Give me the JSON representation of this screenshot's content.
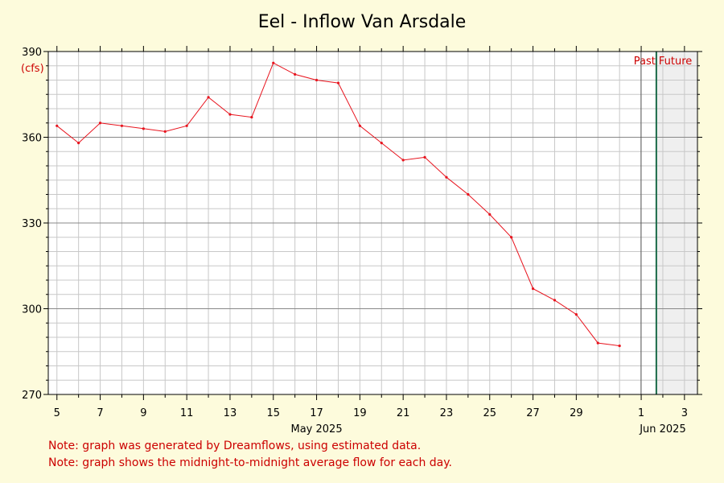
{
  "chart_data": {
    "type": "line",
    "title": "Eel - Inflow Van Arsdale",
    "ylabel": "(cfs)",
    "ylim": [
      270,
      390
    ],
    "yticks": [
      {
        "value": 390,
        "label": "390"
      },
      {
        "value": 360,
        "label": "360"
      },
      {
        "value": 330,
        "label": "330"
      },
      {
        "value": 300,
        "label": "300"
      },
      {
        "value": 270,
        "label": "270"
      }
    ],
    "xlim": [
      "2025-05-04.6",
      "2025-06-03.6"
    ],
    "xticks": [
      {
        "date": "2025-05-05",
        "label": "5"
      },
      {
        "date": "2025-05-07",
        "label": "7"
      },
      {
        "date": "2025-05-09",
        "label": "9"
      },
      {
        "date": "2025-05-11",
        "label": "11"
      },
      {
        "date": "2025-05-13",
        "label": "13"
      },
      {
        "date": "2025-05-15",
        "label": "15"
      },
      {
        "date": "2025-05-17",
        "label": "17"
      },
      {
        "date": "2025-05-19",
        "label": "19"
      },
      {
        "date": "2025-05-21",
        "label": "21"
      },
      {
        "date": "2025-05-23",
        "label": "23"
      },
      {
        "date": "2025-05-25",
        "label": "25"
      },
      {
        "date": "2025-05-27",
        "label": "27"
      },
      {
        "date": "2025-05-29",
        "label": "29"
      },
      {
        "date": "2025-06-01",
        "label": "1"
      },
      {
        "date": "2025-06-03",
        "label": "3"
      }
    ],
    "month_labels": [
      {
        "date": "2025-05-17",
        "label": "May 2025"
      },
      {
        "date": "2025-06-02",
        "label": "Jun 2025"
      }
    ],
    "series": [
      {
        "color": "#e8141e",
        "x": [
          "2025-05-05",
          "2025-05-06",
          "2025-05-07",
          "2025-05-08",
          "2025-05-09",
          "2025-05-10",
          "2025-05-11",
          "2025-05-12",
          "2025-05-13",
          "2025-05-14",
          "2025-05-15",
          "2025-05-16",
          "2025-05-17",
          "2025-05-18",
          "2025-05-19",
          "2025-05-20",
          "2025-05-21",
          "2025-05-22",
          "2025-05-23",
          "2025-05-24",
          "2025-05-25",
          "2025-05-26",
          "2025-05-27",
          "2025-05-28",
          "2025-05-29",
          "2025-05-30",
          "2025-05-31"
        ],
        "y": [
          364,
          358,
          365,
          364,
          363,
          362,
          364,
          374,
          368,
          367,
          386,
          382,
          380,
          379,
          364,
          358,
          352,
          353,
          346,
          340,
          333,
          325,
          307,
          303,
          298,
          288,
          287
        ]
      }
    ],
    "now_date": "2025-06-01.7",
    "past_label": "Past",
    "future_label": "Future",
    "grid": true,
    "colors": {
      "background": "#fdfbdc",
      "plot_background": "#ffffff",
      "future_background": "#efefef",
      "grid_minor": "#c8c8c8",
      "grid_major": "#888888",
      "now_line": "#1a6a48",
      "line": "#e8141e"
    }
  },
  "notes": [
    "Note: graph was generated by Dreamflows, using estimated data.",
    "Note: graph shows the midnight-to-midnight average flow for each day."
  ]
}
